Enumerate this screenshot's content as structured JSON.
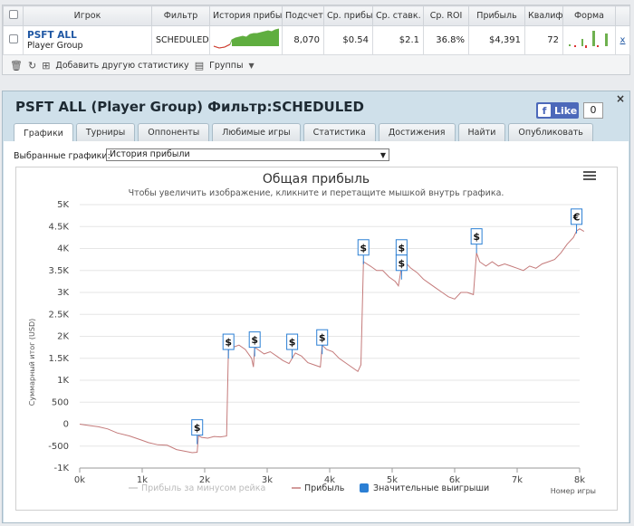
{
  "table": {
    "headers": [
      "Игрок",
      "Фильтр",
      "История прибыли",
      "Подсчет",
      "Ср. прибыль",
      "Ср. ставк.",
      "Ср. ROI",
      "Прибыль",
      "Квалиф.",
      "Форма"
    ],
    "row": {
      "player": "PSFT ALL",
      "group": "Player Group",
      "filter": "SCHEDULED",
      "count": "8,070",
      "avg_profit": "$0.54",
      "avg_stake": "$2.1",
      "avg_roi": "36.8%",
      "profit": "$4,391",
      "qual": "72",
      "remove": "x"
    }
  },
  "toolbar": {
    "add_stat": "Добавить другую статистику",
    "groups": "Группы"
  },
  "panel": {
    "title": "PSFT ALL (Player Group) Фильтр:SCHEDULED",
    "close": "×",
    "like_label": "Like",
    "like_count": "0",
    "tabs": [
      "Графики",
      "Турниры",
      "Оппоненты",
      "Любимые игры",
      "Статистика",
      "Достижения",
      "Найти",
      "Опубликовать"
    ],
    "active_tab": 0,
    "select_label": "Выбранные графики:",
    "select_value": "История прибыли"
  },
  "chart_data": {
    "type": "line",
    "title": "Общая прибыль",
    "subtitle": "Чтобы увеличить изображение, кликните и перетащите мышкой внутрь графика.",
    "ylabel": "Суммарный итог (USD)",
    "xlabel": "Номер игры",
    "ylim": [
      -1000,
      5000
    ],
    "xlim": [
      0,
      8000
    ],
    "yticks": [
      "-1K",
      "-500",
      "0",
      "500",
      "1K",
      "1.5K",
      "2K",
      "2.5K",
      "3K",
      "3.5K",
      "4K",
      "4.5K",
      "5K"
    ],
    "xticks": [
      "0k",
      "1k",
      "2k",
      "3k",
      "4k",
      "5k",
      "6k",
      "7k",
      "8k"
    ],
    "legend": [
      "Прибыль за минусом рейка",
      "Прибыль",
      "Значительные выигрыши"
    ],
    "series": [
      {
        "name": "Прибыль",
        "color": "#c47a7a",
        "points": [
          [
            0,
            0
          ],
          [
            150,
            -30
          ],
          [
            300,
            -60
          ],
          [
            450,
            -110
          ],
          [
            600,
            -200
          ],
          [
            800,
            -270
          ],
          [
            1000,
            -370
          ],
          [
            1100,
            -420
          ],
          [
            1250,
            -470
          ],
          [
            1400,
            -480
          ],
          [
            1550,
            -580
          ],
          [
            1700,
            -620
          ],
          [
            1800,
            -650
          ],
          [
            1880,
            -640
          ],
          [
            1900,
            -260
          ],
          [
            1950,
            -300
          ],
          [
            2050,
            -320
          ],
          [
            2150,
            -280
          ],
          [
            2250,
            -290
          ],
          [
            2350,
            -270
          ],
          [
            2380,
            1700
          ],
          [
            2450,
            1750
          ],
          [
            2550,
            1800
          ],
          [
            2650,
            1700
          ],
          [
            2750,
            1500
          ],
          [
            2780,
            1300
          ],
          [
            2800,
            1750
          ],
          [
            2850,
            1700
          ],
          [
            2950,
            1600
          ],
          [
            3050,
            1650
          ],
          [
            3150,
            1550
          ],
          [
            3250,
            1450
          ],
          [
            3350,
            1380
          ],
          [
            3450,
            1620
          ],
          [
            3550,
            1550
          ],
          [
            3650,
            1400
          ],
          [
            3750,
            1350
          ],
          [
            3850,
            1300
          ],
          [
            3880,
            1800
          ],
          [
            3950,
            1700
          ],
          [
            4050,
            1650
          ],
          [
            4150,
            1500
          ],
          [
            4250,
            1400
          ],
          [
            4350,
            1300
          ],
          [
            4450,
            1200
          ],
          [
            4500,
            1350
          ],
          [
            4540,
            3700
          ],
          [
            4650,
            3600
          ],
          [
            4750,
            3500
          ],
          [
            4850,
            3500
          ],
          [
            4950,
            3350
          ],
          [
            5050,
            3250
          ],
          [
            5100,
            3150
          ],
          [
            5150,
            3600
          ],
          [
            5200,
            3700
          ],
          [
            5300,
            3550
          ],
          [
            5400,
            3450
          ],
          [
            5500,
            3300
          ],
          [
            5600,
            3200
          ],
          [
            5700,
            3100
          ],
          [
            5800,
            3000
          ],
          [
            5900,
            2900
          ],
          [
            6000,
            2850
          ],
          [
            6100,
            3000
          ],
          [
            6200,
            3000
          ],
          [
            6300,
            2950
          ],
          [
            6350,
            3900
          ],
          [
            6400,
            3700
          ],
          [
            6500,
            3600
          ],
          [
            6600,
            3700
          ],
          [
            6700,
            3600
          ],
          [
            6800,
            3650
          ],
          [
            6900,
            3600
          ],
          [
            7000,
            3550
          ],
          [
            7100,
            3500
          ],
          [
            7200,
            3600
          ],
          [
            7300,
            3550
          ],
          [
            7400,
            3650
          ],
          [
            7500,
            3700
          ],
          [
            7600,
            3750
          ],
          [
            7700,
            3900
          ],
          [
            7800,
            4100
          ],
          [
            7900,
            4250
          ],
          [
            7950,
            4400
          ],
          [
            8000,
            4450
          ],
          [
            8070,
            4390
          ]
        ]
      }
    ],
    "markers": [
      {
        "x": 1880,
        "y": -250,
        "symbol": "$"
      },
      {
        "x": 2380,
        "y": 1700,
        "symbol": "$"
      },
      {
        "x": 2800,
        "y": 1750,
        "symbol": "$"
      },
      {
        "x": 3400,
        "y": 1700,
        "symbol": "$"
      },
      {
        "x": 3880,
        "y": 1800,
        "symbol": "$"
      },
      {
        "x": 4540,
        "y": 3850,
        "symbol": "$"
      },
      {
        "x": 5150,
        "y": 3850,
        "symbol": "$"
      },
      {
        "x": 5150,
        "y": 3500,
        "symbol": "$"
      },
      {
        "x": 6350,
        "y": 4100,
        "symbol": "$"
      },
      {
        "x": 7950,
        "y": 4550,
        "symbol": "€"
      }
    ]
  }
}
